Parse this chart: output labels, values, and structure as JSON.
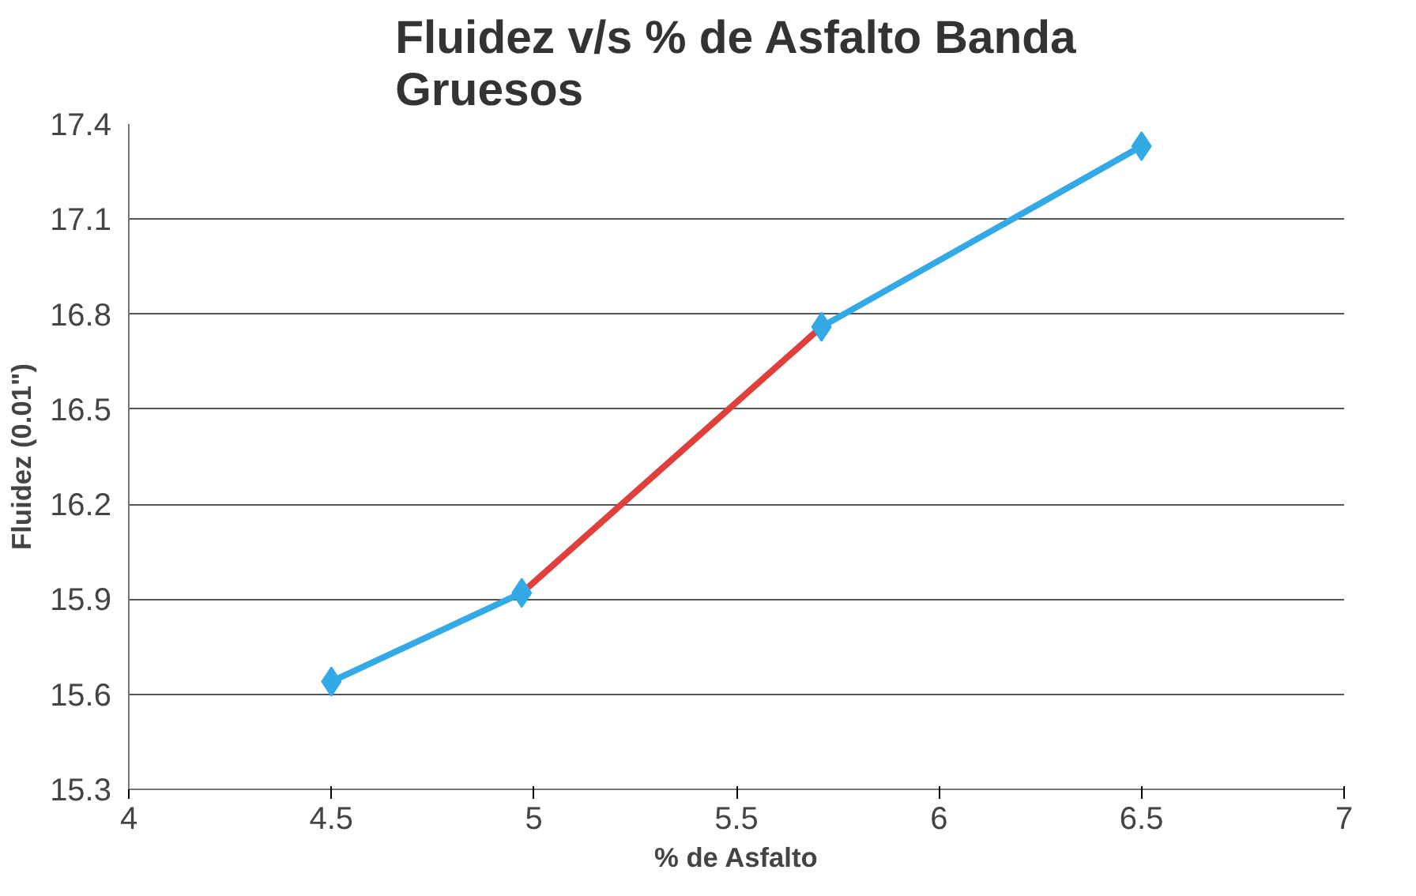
{
  "chart_data": {
    "type": "line",
    "title": "Fluidez v/s % de Asfalto Banda\nGruesos",
    "xlabel": "% de Asfalto",
    "ylabel": "Fluidez (0.01\")",
    "series": [
      {
        "color": "#33a9e6",
        "x": [
          4.5,
          4.97
        ],
        "values": [
          15.64,
          15.92
        ],
        "marker": "diamond"
      },
      {
        "color": "#e0403c",
        "x": [
          4.97,
          5.71
        ],
        "values": [
          15.92,
          16.76
        ],
        "marker": "none"
      },
      {
        "color": "#33a9e6",
        "x": [
          5.71,
          6.5
        ],
        "values": [
          16.76,
          17.33
        ],
        "marker": "diamond"
      }
    ],
    "xlim": [
      4,
      7
    ],
    "xticks": [
      4,
      4.5,
      5,
      5.5,
      6,
      6.5,
      7
    ],
    "ylim": [
      15.3,
      17.4
    ],
    "yticks": [
      15.3,
      15.6,
      15.9,
      16.2,
      16.5,
      16.8,
      17.1,
      17.4
    ],
    "grid": "y"
  }
}
